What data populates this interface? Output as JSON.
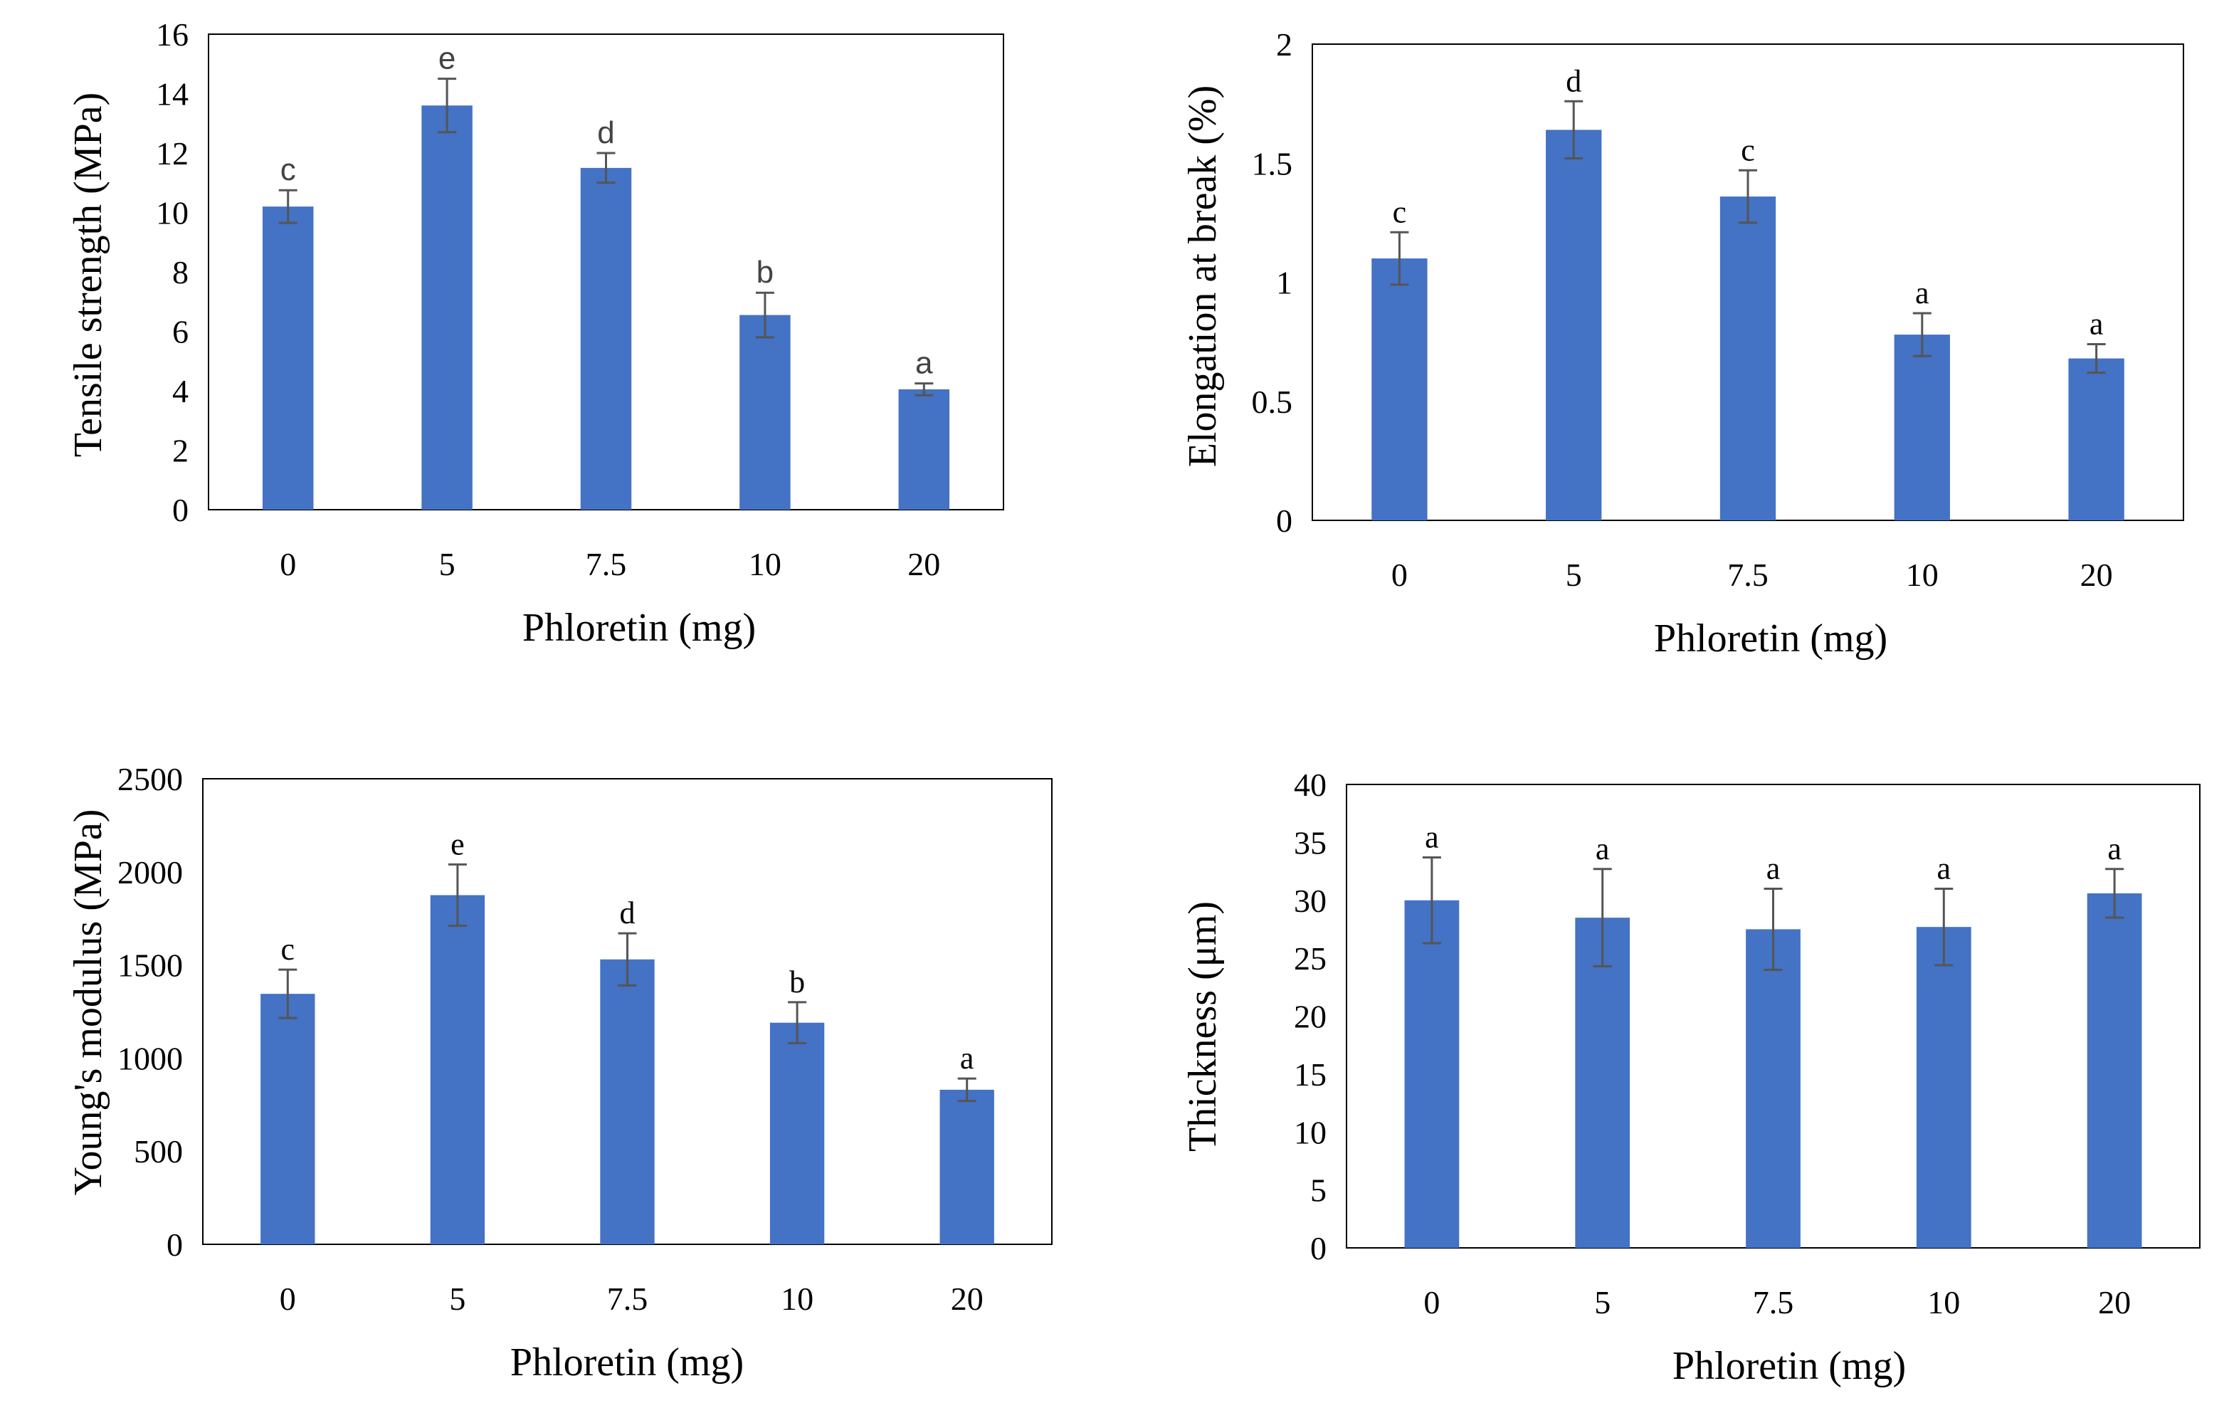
{
  "colors": {
    "bar": "#4472C4",
    "error_bar": "#555555",
    "frame": "#000000"
  },
  "chart_data": [
    {
      "type": "bar",
      "title": "",
      "xlabel": "Phloretin (mg)",
      "ylabel": "Tensile strength (MPa)",
      "categories": [
        "0",
        "5",
        "7.5",
        "10",
        "20"
      ],
      "values": [
        10.2,
        13.6,
        11.5,
        6.55,
        4.05
      ],
      "errors": [
        0.55,
        0.9,
        0.5,
        0.75,
        0.2
      ],
      "letters": [
        "c",
        "e",
        "d",
        "b",
        "a"
      ],
      "ylim": [
        0,
        16
      ],
      "yticks": [
        "0",
        "2",
        "4",
        "6",
        "8",
        "10",
        "12",
        "14",
        "16"
      ],
      "grid": false
    },
    {
      "type": "bar",
      "title": "",
      "xlabel": "Phloretin (mg)",
      "ylabel": "Elongation at break (%)",
      "categories": [
        "0",
        "5",
        "7.5",
        "10",
        "20"
      ],
      "values": [
        1.1,
        1.64,
        1.36,
        0.78,
        0.68
      ],
      "errors": [
        0.11,
        0.12,
        0.11,
        0.09,
        0.06
      ],
      "letters": [
        "c",
        "d",
        "c",
        "a",
        "a"
      ],
      "ylim": [
        0,
        2
      ],
      "yticks": [
        "0",
        "0.5",
        "1",
        "1.5",
        "2"
      ],
      "grid": false
    },
    {
      "type": "bar",
      "title": "",
      "xlabel": "Phloretin (mg)",
      "ylabel": "Young's modulus (MPa)",
      "categories": [
        "0",
        "5",
        "7.5",
        "10",
        "20"
      ],
      "values": [
        1345,
        1875,
        1530,
        1190,
        830
      ],
      "errors": [
        130,
        165,
        140,
        110,
        60
      ],
      "letters": [
        "c",
        "e",
        "d",
        "b",
        "a"
      ],
      "ylim": [
        0,
        2500
      ],
      "yticks": [
        "0",
        "500",
        "1000",
        "1500",
        "2000",
        "2500"
      ],
      "grid": false
    },
    {
      "type": "bar",
      "title": "",
      "xlabel": "Phloretin (mg)",
      "ylabel": "Thickness (μm)",
      "categories": [
        "0",
        "5",
        "7.5",
        "10",
        "20"
      ],
      "values": [
        30.0,
        28.5,
        27.5,
        27.7,
        30.6
      ],
      "errors": [
        3.7,
        4.2,
        3.5,
        3.3,
        2.1
      ],
      "letters": [
        "a",
        "a",
        "a",
        "a",
        "a"
      ],
      "ylim": [
        0,
        40
      ],
      "yticks": [
        "0",
        "5",
        "10",
        "15",
        "20",
        "25",
        "30",
        "35",
        "40"
      ],
      "grid": false
    }
  ]
}
